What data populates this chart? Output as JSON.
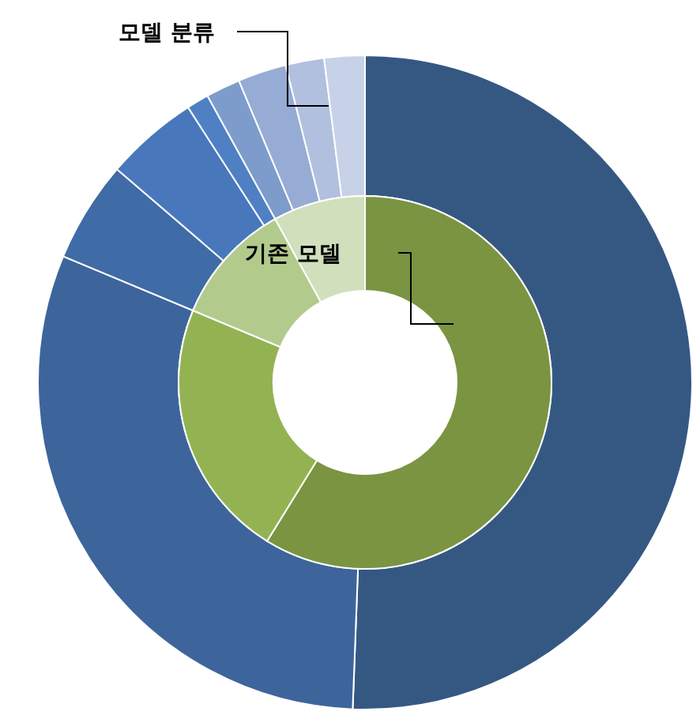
{
  "chart_data": {
    "type": "donut",
    "series": [
      {
        "name": "모델 분류",
        "values": [
          50.6,
          30.7,
          5.0,
          4.6,
          1.1,
          1.7,
          2.4,
          1.9,
          2.0
        ],
        "colors": [
          "#355883",
          "#3d659b",
          "#3f6ba6",
          "#4878bb",
          "#4f80c4",
          "#7e9ccb",
          "#97acd5",
          "#b1c0df",
          "#c7d2e8"
        ]
      },
      {
        "name": "기존 모델",
        "values": [
          58.8,
          22.5,
          10.7,
          8.0
        ],
        "colors": [
          "#7a9442",
          "#93b352",
          "#b3ca8d",
          "#d0dfbc"
        ]
      }
    ]
  }
}
